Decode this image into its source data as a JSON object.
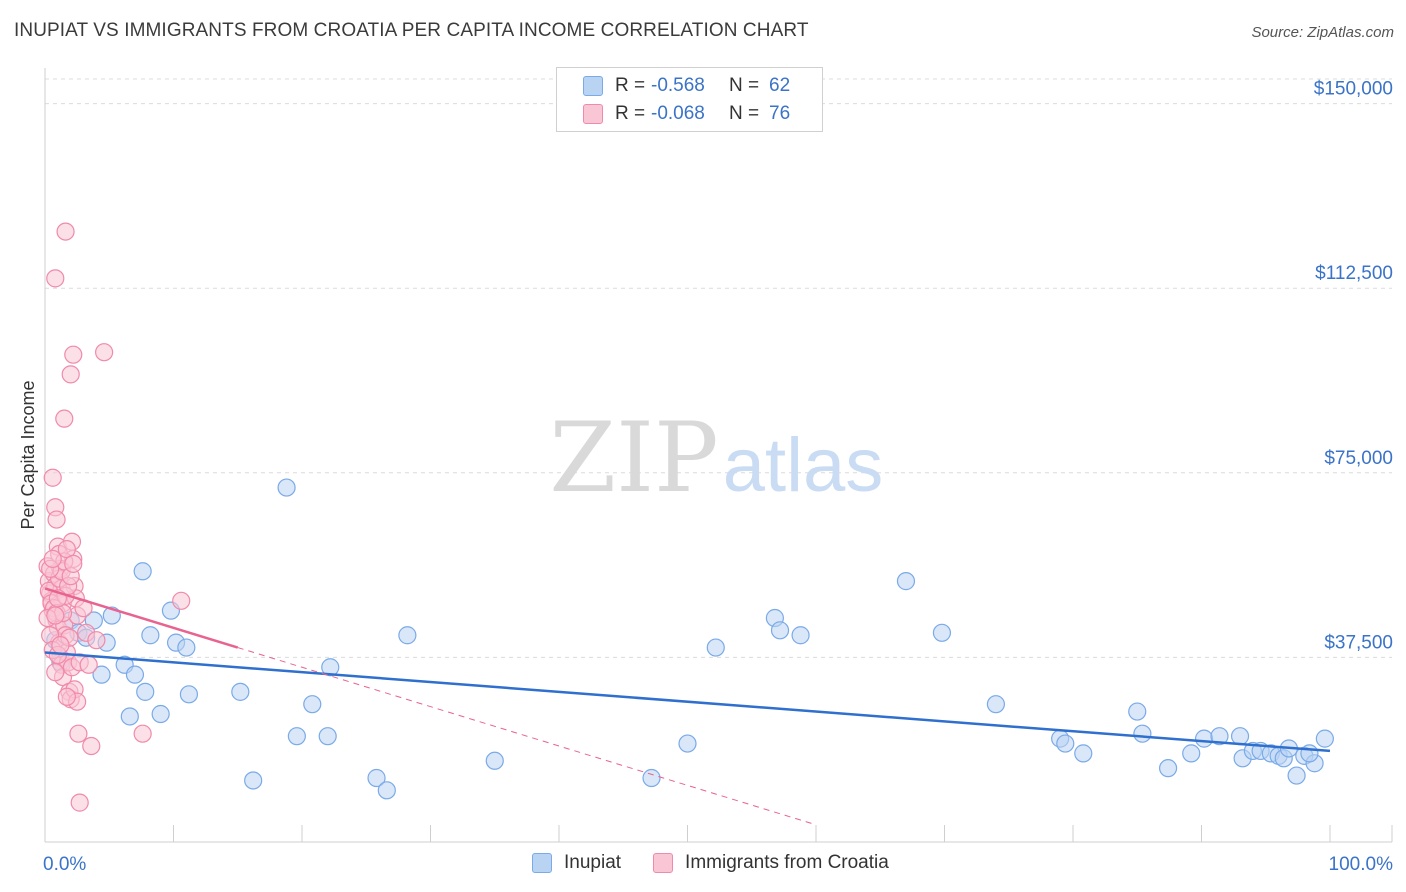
{
  "title": "INUPIAT VS IMMIGRANTS FROM CROATIA PER CAPITA INCOME CORRELATION CHART",
  "source": "Source: ZipAtlas.com",
  "watermark": {
    "zip": "ZIP",
    "atlas": "atlas"
  },
  "legend": {
    "rows": [
      {
        "r_label": "R =",
        "r_value": "-0.568",
        "n_label": "N =",
        "n_value": "62",
        "color": "#7aaae8",
        "fill": "#b9d3f3"
      },
      {
        "r_label": "R =",
        "r_value": "-0.068",
        "n_label": "N =",
        "n_value": "76",
        "color": "#f08aaa",
        "fill": "#f9c6d6"
      }
    ]
  },
  "bottom_legend": [
    {
      "label": "Inupiat",
      "color": "#7aaae8",
      "fill": "#b9d3f3"
    },
    {
      "label": "Immigrants from Croatia",
      "color": "#f08aaa",
      "fill": "#f9c6d6"
    }
  ],
  "chart_data": {
    "type": "scatter",
    "title": "INUPIAT VS IMMIGRANTS FROM CROATIA PER CAPITA INCOME CORRELATION CHART",
    "xlabel": "",
    "ylabel": "Per Capita Income",
    "xlim": [
      0,
      100
    ],
    "ylim": [
      0,
      155000
    ],
    "x_tick_labels": [
      "0.0%",
      "100.0%"
    ],
    "y_ticks": [
      37500,
      75000,
      112500,
      150000
    ],
    "y_tick_labels": [
      "$37,500",
      "$75,000",
      "$112,500",
      "$150,000"
    ],
    "series": [
      {
        "name": "Inupiat",
        "color": "#7aaae8",
        "fill": "#b9d3f3",
        "trend": {
          "x0": 0,
          "y0": 38500,
          "x1": 100,
          "y1": 18500,
          "color": "#2f6fce",
          "style": "solid"
        },
        "points": [
          [
            0.8,
            41000
          ],
          [
            1.2,
            36500
          ],
          [
            2.0,
            45000
          ],
          [
            2.6,
            42500
          ],
          [
            3.2,
            41500
          ],
          [
            3.8,
            45000
          ],
          [
            4.4,
            34000
          ],
          [
            4.8,
            40500
          ],
          [
            5.2,
            46000
          ],
          [
            6.2,
            36000
          ],
          [
            6.6,
            25500
          ],
          [
            7.0,
            34000
          ],
          [
            7.6,
            55000
          ],
          [
            7.8,
            30500
          ],
          [
            8.2,
            42000
          ],
          [
            9.0,
            26000
          ],
          [
            9.8,
            47000
          ],
          [
            10.2,
            40500
          ],
          [
            11.0,
            39500
          ],
          [
            11.2,
            30000
          ],
          [
            15.2,
            30500
          ],
          [
            16.2,
            12500
          ],
          [
            18.8,
            72000
          ],
          [
            19.6,
            21500
          ],
          [
            20.8,
            28000
          ],
          [
            22.0,
            21500
          ],
          [
            22.2,
            35500
          ],
          [
            25.8,
            13000
          ],
          [
            26.6,
            10500
          ],
          [
            28.2,
            42000
          ],
          [
            35.0,
            16500
          ],
          [
            47.2,
            13000
          ],
          [
            50.0,
            20000
          ],
          [
            52.2,
            39500
          ],
          [
            56.8,
            45500
          ],
          [
            57.2,
            43000
          ],
          [
            58.8,
            42000
          ],
          [
            67.0,
            53000
          ],
          [
            69.8,
            42500
          ],
          [
            74.0,
            28000
          ],
          [
            79.0,
            21000
          ],
          [
            79.4,
            20000
          ],
          [
            80.8,
            18000
          ],
          [
            85.0,
            26500
          ],
          [
            85.4,
            22000
          ],
          [
            87.4,
            15000
          ],
          [
            89.2,
            18000
          ],
          [
            90.2,
            21000
          ],
          [
            91.4,
            21500
          ],
          [
            93.0,
            21500
          ],
          [
            93.2,
            17000
          ],
          [
            94.0,
            18500
          ],
          [
            94.6,
            18500
          ],
          [
            95.4,
            18000
          ],
          [
            96.0,
            17500
          ],
          [
            96.4,
            17000
          ],
          [
            96.8,
            19000
          ],
          [
            97.4,
            13500
          ],
          [
            98.0,
            17500
          ],
          [
            98.8,
            16000
          ],
          [
            99.6,
            21000
          ],
          [
            98.4,
            18000
          ]
        ]
      },
      {
        "name": "Immigrants from Croatia",
        "color": "#f08aaa",
        "fill": "#f9c6d6",
        "trend_solid": {
          "x0": 0,
          "y0": 51500,
          "x1": 15,
          "y1": 39500,
          "color": "#e8638f"
        },
        "trend_dashed": {
          "x0": 15,
          "y0": 39500,
          "x1": 60,
          "y1": 3500,
          "color": "#e8638f"
        },
        "points": [
          [
            0.2,
            56000
          ],
          [
            0.3,
            53000
          ],
          [
            0.4,
            50500
          ],
          [
            0.5,
            49000
          ],
          [
            0.6,
            47000
          ],
          [
            0.7,
            54500
          ],
          [
            0.8,
            52000
          ],
          [
            0.9,
            45000
          ],
          [
            1.0,
            43500
          ],
          [
            1.1,
            40500
          ],
          [
            1.2,
            37500
          ],
          [
            1.3,
            36000
          ],
          [
            1.4,
            33500
          ],
          [
            0.6,
            74000
          ],
          [
            0.8,
            68000
          ],
          [
            0.9,
            65500
          ],
          [
            1.0,
            60000
          ],
          [
            1.1,
            58500
          ],
          [
            1.2,
            55500
          ],
          [
            1.3,
            51500
          ],
          [
            1.4,
            48500
          ],
          [
            1.5,
            44000
          ],
          [
            1.6,
            42000
          ],
          [
            1.7,
            38500
          ],
          [
            1.8,
            36500
          ],
          [
            1.9,
            30500
          ],
          [
            2.0,
            29000
          ],
          [
            2.1,
            61000
          ],
          [
            2.2,
            57500
          ],
          [
            2.3,
            52000
          ],
          [
            2.4,
            49500
          ],
          [
            2.5,
            46000
          ],
          [
            2.6,
            22000
          ],
          [
            2.7,
            8000
          ],
          [
            1.6,
            124000
          ],
          [
            0.8,
            114500
          ],
          [
            2.2,
            99000
          ],
          [
            4.6,
            99500
          ],
          [
            2.0,
            95000
          ],
          [
            1.5,
            86000
          ],
          [
            0.3,
            51000
          ],
          [
            0.5,
            48500
          ],
          [
            0.7,
            47500
          ],
          [
            0.9,
            46500
          ],
          [
            1.1,
            53500
          ],
          [
            1.3,
            55000
          ],
          [
            1.5,
            57000
          ],
          [
            1.7,
            59500
          ],
          [
            1.9,
            41500
          ],
          [
            2.1,
            35500
          ],
          [
            2.3,
            31000
          ],
          [
            3.0,
            47500
          ],
          [
            3.2,
            42500
          ],
          [
            2.7,
            36500
          ],
          [
            3.6,
            19500
          ],
          [
            4.0,
            41000
          ],
          [
            7.6,
            22000
          ],
          [
            10.6,
            49000
          ],
          [
            0.4,
            42000
          ],
          [
            0.6,
            39000
          ],
          [
            0.8,
            34500
          ],
          [
            1.0,
            38000
          ],
          [
            1.2,
            40000
          ],
          [
            1.4,
            46500
          ],
          [
            1.6,
            50000
          ],
          [
            1.8,
            52000
          ],
          [
            2.0,
            54000
          ],
          [
            2.2,
            56500
          ],
          [
            0.2,
            45500
          ],
          [
            0.4,
            55500
          ],
          [
            0.6,
            57500
          ],
          [
            0.8,
            46000
          ],
          [
            1.0,
            49500
          ],
          [
            2.5,
            28500
          ],
          [
            1.7,
            29500
          ],
          [
            3.4,
            36000
          ]
        ]
      }
    ]
  }
}
